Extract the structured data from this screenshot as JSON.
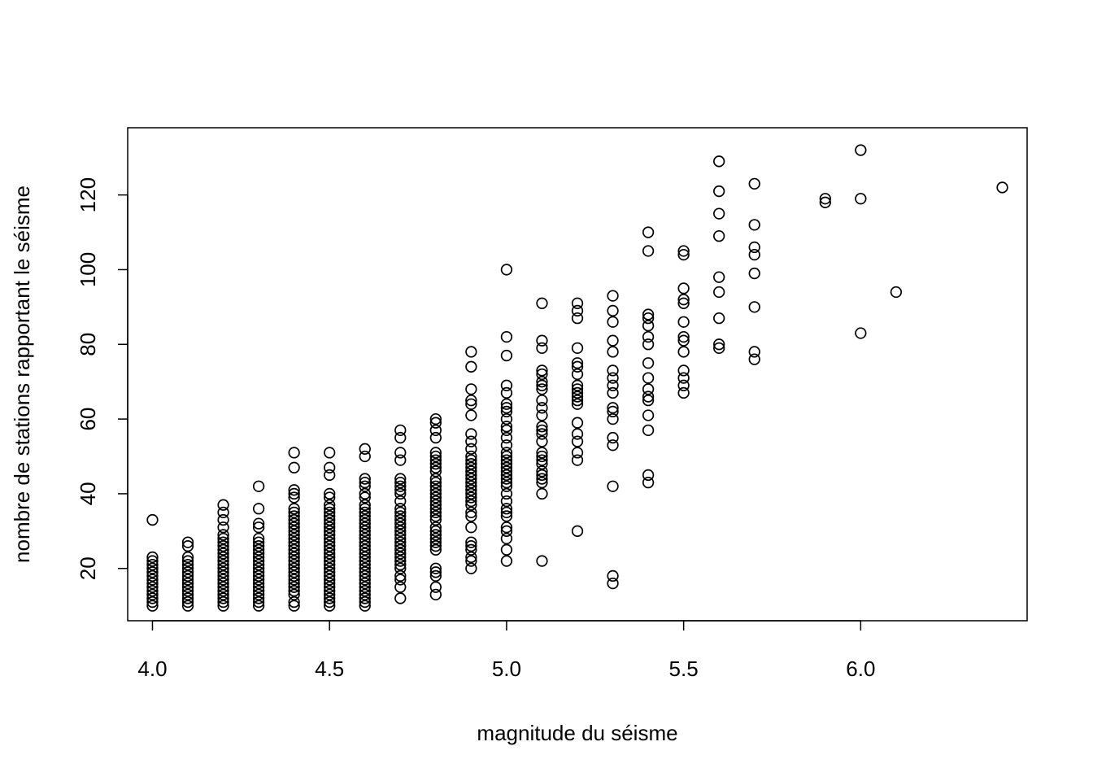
{
  "chart_data": {
    "type": "scatter",
    "title": "",
    "xlabel": "magnitude du séisme",
    "ylabel": "nombre de stations rapportant le séisme",
    "xlim": [
      3.93,
      6.47
    ],
    "ylim": [
      6,
      138
    ],
    "x_ticks": [
      4.0,
      4.5,
      5.0,
      5.5,
      6.0
    ],
    "x_tick_labels": [
      "4.0",
      "4.5",
      "5.0",
      "5.5",
      "6.0"
    ],
    "y_ticks": [
      20,
      40,
      60,
      80,
      100,
      120
    ],
    "y_tick_labels": [
      "20",
      "40",
      "60",
      "80",
      "100",
      "120"
    ],
    "grid": false,
    "legend": "none",
    "marker": "open-circle",
    "points": [
      [
        4.0,
        33
      ],
      [
        4.0,
        23
      ],
      [
        4.0,
        22
      ],
      [
        4.0,
        21
      ],
      [
        4.0,
        20
      ],
      [
        4.0,
        19
      ],
      [
        4.0,
        18
      ],
      [
        4.0,
        17
      ],
      [
        4.0,
        16
      ],
      [
        4.0,
        15
      ],
      [
        4.0,
        14
      ],
      [
        4.0,
        13
      ],
      [
        4.0,
        12
      ],
      [
        4.0,
        11
      ],
      [
        4.0,
        10
      ],
      [
        4.1,
        27
      ],
      [
        4.1,
        26
      ],
      [
        4.1,
        23
      ],
      [
        4.1,
        22
      ],
      [
        4.1,
        21
      ],
      [
        4.1,
        20
      ],
      [
        4.1,
        19
      ],
      [
        4.1,
        18
      ],
      [
        4.1,
        17
      ],
      [
        4.1,
        16
      ],
      [
        4.1,
        15
      ],
      [
        4.1,
        14
      ],
      [
        4.1,
        13
      ],
      [
        4.1,
        12
      ],
      [
        4.1,
        11
      ],
      [
        4.1,
        10
      ],
      [
        4.2,
        37
      ],
      [
        4.2,
        35
      ],
      [
        4.2,
        33
      ],
      [
        4.2,
        31
      ],
      [
        4.2,
        29
      ],
      [
        4.2,
        28
      ],
      [
        4.2,
        27
      ],
      [
        4.2,
        26
      ],
      [
        4.2,
        25
      ],
      [
        4.2,
        24
      ],
      [
        4.2,
        23
      ],
      [
        4.2,
        22
      ],
      [
        4.2,
        21
      ],
      [
        4.2,
        20
      ],
      [
        4.2,
        19
      ],
      [
        4.2,
        18
      ],
      [
        4.2,
        17
      ],
      [
        4.2,
        16
      ],
      [
        4.2,
        15
      ],
      [
        4.2,
        14
      ],
      [
        4.2,
        13
      ],
      [
        4.2,
        12
      ],
      [
        4.2,
        11
      ],
      [
        4.2,
        10
      ],
      [
        4.3,
        42
      ],
      [
        4.3,
        36
      ],
      [
        4.3,
        32
      ],
      [
        4.3,
        31
      ],
      [
        4.3,
        28
      ],
      [
        4.3,
        27
      ],
      [
        4.3,
        26
      ],
      [
        4.3,
        25
      ],
      [
        4.3,
        24
      ],
      [
        4.3,
        23
      ],
      [
        4.3,
        22
      ],
      [
        4.3,
        21
      ],
      [
        4.3,
        20
      ],
      [
        4.3,
        19
      ],
      [
        4.3,
        18
      ],
      [
        4.3,
        17
      ],
      [
        4.3,
        16
      ],
      [
        4.3,
        15
      ],
      [
        4.3,
        14
      ],
      [
        4.3,
        13
      ],
      [
        4.3,
        12
      ],
      [
        4.3,
        11
      ],
      [
        4.3,
        10
      ],
      [
        4.4,
        51
      ],
      [
        4.4,
        47
      ],
      [
        4.4,
        41
      ],
      [
        4.4,
        40
      ],
      [
        4.4,
        39
      ],
      [
        4.4,
        36
      ],
      [
        4.4,
        35
      ],
      [
        4.4,
        34
      ],
      [
        4.4,
        33
      ],
      [
        4.4,
        32
      ],
      [
        4.4,
        31
      ],
      [
        4.4,
        30
      ],
      [
        4.4,
        29
      ],
      [
        4.4,
        28
      ],
      [
        4.4,
        27
      ],
      [
        4.4,
        26
      ],
      [
        4.4,
        25
      ],
      [
        4.4,
        24
      ],
      [
        4.4,
        23
      ],
      [
        4.4,
        22
      ],
      [
        4.4,
        21
      ],
      [
        4.4,
        20
      ],
      [
        4.4,
        19
      ],
      [
        4.4,
        18
      ],
      [
        4.4,
        17
      ],
      [
        4.4,
        16
      ],
      [
        4.4,
        15
      ],
      [
        4.4,
        14
      ],
      [
        4.4,
        13
      ],
      [
        4.4,
        11
      ],
      [
        4.4,
        10
      ],
      [
        4.5,
        51
      ],
      [
        4.5,
        47
      ],
      [
        4.5,
        45
      ],
      [
        4.5,
        40
      ],
      [
        4.5,
        39
      ],
      [
        4.5,
        37
      ],
      [
        4.5,
        36
      ],
      [
        4.5,
        35
      ],
      [
        4.5,
        34
      ],
      [
        4.5,
        33
      ],
      [
        4.5,
        32
      ],
      [
        4.5,
        31
      ],
      [
        4.5,
        30
      ],
      [
        4.5,
        29
      ],
      [
        4.5,
        28
      ],
      [
        4.5,
        27
      ],
      [
        4.5,
        26
      ],
      [
        4.5,
        25
      ],
      [
        4.5,
        24
      ],
      [
        4.5,
        23
      ],
      [
        4.5,
        22
      ],
      [
        4.5,
        21
      ],
      [
        4.5,
        20
      ],
      [
        4.5,
        19
      ],
      [
        4.5,
        18
      ],
      [
        4.5,
        17
      ],
      [
        4.5,
        16
      ],
      [
        4.5,
        15
      ],
      [
        4.5,
        14
      ],
      [
        4.5,
        13
      ],
      [
        4.5,
        12
      ],
      [
        4.5,
        11
      ],
      [
        4.5,
        10
      ],
      [
        4.6,
        52
      ],
      [
        4.6,
        50
      ],
      [
        4.6,
        44
      ],
      [
        4.6,
        43
      ],
      [
        4.6,
        42
      ],
      [
        4.6,
        40
      ],
      [
        4.6,
        39
      ],
      [
        4.6,
        37
      ],
      [
        4.6,
        36
      ],
      [
        4.6,
        35
      ],
      [
        4.6,
        34
      ],
      [
        4.6,
        33
      ],
      [
        4.6,
        32
      ],
      [
        4.6,
        31
      ],
      [
        4.6,
        30
      ],
      [
        4.6,
        29
      ],
      [
        4.6,
        28
      ],
      [
        4.6,
        27
      ],
      [
        4.6,
        26
      ],
      [
        4.6,
        25
      ],
      [
        4.6,
        24
      ],
      [
        4.6,
        23
      ],
      [
        4.6,
        22
      ],
      [
        4.6,
        21
      ],
      [
        4.6,
        20
      ],
      [
        4.6,
        19
      ],
      [
        4.6,
        18
      ],
      [
        4.6,
        17
      ],
      [
        4.6,
        16
      ],
      [
        4.6,
        15
      ],
      [
        4.6,
        14
      ],
      [
        4.6,
        13
      ],
      [
        4.6,
        12
      ],
      [
        4.6,
        11
      ],
      [
        4.6,
        10
      ],
      [
        4.7,
        57
      ],
      [
        4.7,
        55
      ],
      [
        4.7,
        51
      ],
      [
        4.7,
        49
      ],
      [
        4.7,
        44
      ],
      [
        4.7,
        43
      ],
      [
        4.7,
        42
      ],
      [
        4.7,
        41
      ],
      [
        4.7,
        40
      ],
      [
        4.7,
        38
      ],
      [
        4.7,
        36
      ],
      [
        4.7,
        35
      ],
      [
        4.7,
        34
      ],
      [
        4.7,
        33
      ],
      [
        4.7,
        32
      ],
      [
        4.7,
        31
      ],
      [
        4.7,
        30
      ],
      [
        4.7,
        29
      ],
      [
        4.7,
        28
      ],
      [
        4.7,
        27
      ],
      [
        4.7,
        26
      ],
      [
        4.7,
        25
      ],
      [
        4.7,
        24
      ],
      [
        4.7,
        23
      ],
      [
        4.7,
        22
      ],
      [
        4.7,
        21
      ],
      [
        4.7,
        20
      ],
      [
        4.7,
        18
      ],
      [
        4.7,
        17
      ],
      [
        4.7,
        15
      ],
      [
        4.7,
        12
      ],
      [
        4.8,
        60
      ],
      [
        4.8,
        59
      ],
      [
        4.8,
        57
      ],
      [
        4.8,
        55
      ],
      [
        4.8,
        51
      ],
      [
        4.8,
        50
      ],
      [
        4.8,
        49
      ],
      [
        4.8,
        48
      ],
      [
        4.8,
        47
      ],
      [
        4.8,
        46
      ],
      [
        4.8,
        44
      ],
      [
        4.8,
        43
      ],
      [
        4.8,
        42
      ],
      [
        4.8,
        41
      ],
      [
        4.8,
        40
      ],
      [
        4.8,
        39
      ],
      [
        4.8,
        38
      ],
      [
        4.8,
        37
      ],
      [
        4.8,
        36
      ],
      [
        4.8,
        35
      ],
      [
        4.8,
        34
      ],
      [
        4.8,
        33
      ],
      [
        4.8,
        31
      ],
      [
        4.8,
        30
      ],
      [
        4.8,
        29
      ],
      [
        4.8,
        28
      ],
      [
        4.8,
        27
      ],
      [
        4.8,
        26
      ],
      [
        4.8,
        25
      ],
      [
        4.8,
        20
      ],
      [
        4.8,
        19
      ],
      [
        4.8,
        18
      ],
      [
        4.8,
        15
      ],
      [
        4.8,
        13
      ],
      [
        4.9,
        78
      ],
      [
        4.9,
        74
      ],
      [
        4.9,
        68
      ],
      [
        4.9,
        65
      ],
      [
        4.9,
        64
      ],
      [
        4.9,
        61
      ],
      [
        4.9,
        56
      ],
      [
        4.9,
        54
      ],
      [
        4.9,
        52
      ],
      [
        4.9,
        50
      ],
      [
        4.9,
        49
      ],
      [
        4.9,
        48
      ],
      [
        4.9,
        47
      ],
      [
        4.9,
        46
      ],
      [
        4.9,
        45
      ],
      [
        4.9,
        44
      ],
      [
        4.9,
        43
      ],
      [
        4.9,
        42
      ],
      [
        4.9,
        41
      ],
      [
        4.9,
        40
      ],
      [
        4.9,
        39
      ],
      [
        4.9,
        38
      ],
      [
        4.9,
        37
      ],
      [
        4.9,
        35
      ],
      [
        4.9,
        34
      ],
      [
        4.9,
        31
      ],
      [
        4.9,
        27
      ],
      [
        4.9,
        26
      ],
      [
        4.9,
        25
      ],
      [
        4.9,
        23
      ],
      [
        4.9,
        22
      ],
      [
        4.9,
        20
      ],
      [
        5.0,
        100
      ],
      [
        5.0,
        82
      ],
      [
        5.0,
        77
      ],
      [
        5.0,
        69
      ],
      [
        5.0,
        67
      ],
      [
        5.0,
        64
      ],
      [
        5.0,
        63
      ],
      [
        5.0,
        62
      ],
      [
        5.0,
        60
      ],
      [
        5.0,
        58
      ],
      [
        5.0,
        57
      ],
      [
        5.0,
        55
      ],
      [
        5.0,
        53
      ],
      [
        5.0,
        51
      ],
      [
        5.0,
        50
      ],
      [
        5.0,
        49
      ],
      [
        5.0,
        48
      ],
      [
        5.0,
        47
      ],
      [
        5.0,
        46
      ],
      [
        5.0,
        45
      ],
      [
        5.0,
        44
      ],
      [
        5.0,
        43
      ],
      [
        5.0,
        42
      ],
      [
        5.0,
        40
      ],
      [
        5.0,
        38
      ],
      [
        5.0,
        36
      ],
      [
        5.0,
        35
      ],
      [
        5.0,
        34
      ],
      [
        5.0,
        31
      ],
      [
        5.0,
        30
      ],
      [
        5.0,
        28
      ],
      [
        5.0,
        25
      ],
      [
        5.0,
        22
      ],
      [
        5.1,
        91
      ],
      [
        5.1,
        81
      ],
      [
        5.1,
        79
      ],
      [
        5.1,
        73
      ],
      [
        5.1,
        72
      ],
      [
        5.1,
        70
      ],
      [
        5.1,
        69
      ],
      [
        5.1,
        68
      ],
      [
        5.1,
        65
      ],
      [
        5.1,
        63
      ],
      [
        5.1,
        61
      ],
      [
        5.1,
        58
      ],
      [
        5.1,
        57
      ],
      [
        5.1,
        56
      ],
      [
        5.1,
        54
      ],
      [
        5.1,
        51
      ],
      [
        5.1,
        50
      ],
      [
        5.1,
        49
      ],
      [
        5.1,
        48
      ],
      [
        5.1,
        46
      ],
      [
        5.1,
        45
      ],
      [
        5.1,
        44
      ],
      [
        5.1,
        43
      ],
      [
        5.1,
        40
      ],
      [
        5.1,
        22
      ],
      [
        5.2,
        91
      ],
      [
        5.2,
        89
      ],
      [
        5.2,
        87
      ],
      [
        5.2,
        79
      ],
      [
        5.2,
        75
      ],
      [
        5.2,
        74
      ],
      [
        5.2,
        72
      ],
      [
        5.2,
        69
      ],
      [
        5.2,
        68
      ],
      [
        5.2,
        67
      ],
      [
        5.2,
        66
      ],
      [
        5.2,
        65
      ],
      [
        5.2,
        64
      ],
      [
        5.2,
        59
      ],
      [
        5.2,
        56
      ],
      [
        5.2,
        54
      ],
      [
        5.2,
        51
      ],
      [
        5.2,
        49
      ],
      [
        5.2,
        30
      ],
      [
        5.3,
        93
      ],
      [
        5.3,
        89
      ],
      [
        5.3,
        86
      ],
      [
        5.3,
        81
      ],
      [
        5.3,
        78
      ],
      [
        5.3,
        73
      ],
      [
        5.3,
        71
      ],
      [
        5.3,
        69
      ],
      [
        5.3,
        67
      ],
      [
        5.3,
        63
      ],
      [
        5.3,
        62
      ],
      [
        5.3,
        60
      ],
      [
        5.3,
        55
      ],
      [
        5.3,
        53
      ],
      [
        5.3,
        42
      ],
      [
        5.3,
        18
      ],
      [
        5.3,
        16
      ],
      [
        5.4,
        110
      ],
      [
        5.4,
        105
      ],
      [
        5.4,
        88
      ],
      [
        5.4,
        87
      ],
      [
        5.4,
        85
      ],
      [
        5.4,
        82
      ],
      [
        5.4,
        80
      ],
      [
        5.4,
        75
      ],
      [
        5.4,
        71
      ],
      [
        5.4,
        68
      ],
      [
        5.4,
        66
      ],
      [
        5.4,
        65
      ],
      [
        5.4,
        61
      ],
      [
        5.4,
        57
      ],
      [
        5.4,
        45
      ],
      [
        5.4,
        43
      ],
      [
        5.5,
        105
      ],
      [
        5.5,
        104
      ],
      [
        5.5,
        95
      ],
      [
        5.5,
        92
      ],
      [
        5.5,
        91
      ],
      [
        5.5,
        86
      ],
      [
        5.5,
        82
      ],
      [
        5.5,
        81
      ],
      [
        5.5,
        78
      ],
      [
        5.5,
        73
      ],
      [
        5.5,
        71
      ],
      [
        5.5,
        69
      ],
      [
        5.5,
        67
      ],
      [
        5.6,
        129
      ],
      [
        5.6,
        121
      ],
      [
        5.6,
        115
      ],
      [
        5.6,
        109
      ],
      [
        5.6,
        98
      ],
      [
        5.6,
        94
      ],
      [
        5.6,
        87
      ],
      [
        5.6,
        80
      ],
      [
        5.6,
        79
      ],
      [
        5.7,
        123
      ],
      [
        5.7,
        112
      ],
      [
        5.7,
        106
      ],
      [
        5.7,
        104
      ],
      [
        5.7,
        99
      ],
      [
        5.7,
        90
      ],
      [
        5.7,
        78
      ],
      [
        5.7,
        76
      ],
      [
        5.9,
        119
      ],
      [
        5.9,
        118
      ],
      [
        6.0,
        132
      ],
      [
        6.0,
        119
      ],
      [
        6.0,
        83
      ],
      [
        6.1,
        94
      ],
      [
        6.4,
        122
      ]
    ]
  }
}
